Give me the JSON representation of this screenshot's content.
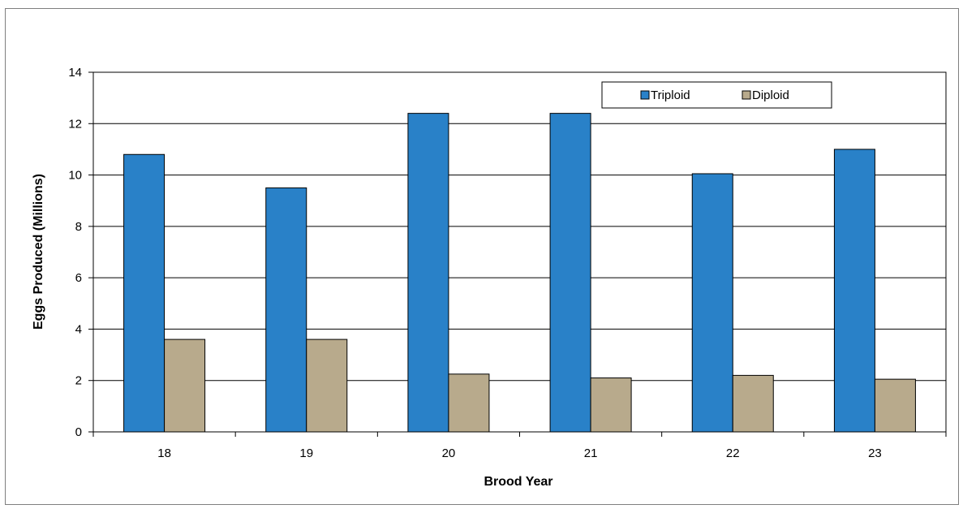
{
  "chart_data": {
    "type": "bar",
    "title": "",
    "xlabel": "Brood Year",
    "ylabel": "Eggs Produced (Millions)",
    "categories": [
      "18",
      "19",
      "20",
      "21",
      "22",
      "23"
    ],
    "ylim": [
      0,
      14
    ],
    "yticks": [
      0,
      2,
      4,
      6,
      8,
      10,
      12,
      14
    ],
    "grid": "horizontal",
    "legend_position": "top-right",
    "series": [
      {
        "name": "Triploid",
        "values": [
          10.8,
          9.5,
          12.4,
          12.4,
          10.05,
          11.0
        ],
        "color": "#2981C8"
      },
      {
        "name": "Diploid",
        "values": [
          3.6,
          3.6,
          2.25,
          2.1,
          2.2,
          2.05
        ],
        "color": "#B8AA8C"
      }
    ]
  }
}
